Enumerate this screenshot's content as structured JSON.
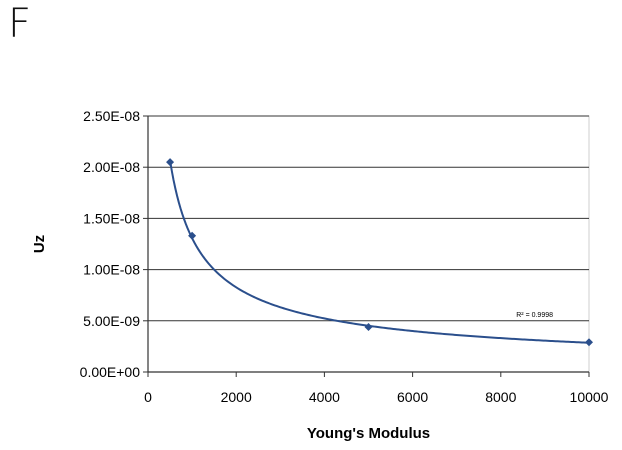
{
  "panel_label": "F",
  "chart_data": {
    "type": "scatter",
    "title": "",
    "xlabel": "Young's Modulus",
    "ylabel": "Uz",
    "xlim": [
      0,
      10000
    ],
    "ylim": [
      0,
      2.5e-08
    ],
    "x_ticks": [
      0,
      2000,
      4000,
      6000,
      8000,
      10000
    ],
    "x_tick_labels": [
      "0",
      "2000",
      "4000",
      "6000",
      "8000",
      "10000"
    ],
    "y_ticks": [
      0,
      5e-09,
      1e-08,
      1.5e-08,
      2e-08,
      2.5e-08
    ],
    "y_tick_labels": [
      "0.00E+00",
      "5.00E-09",
      "1.00E-08",
      "1.50E-08",
      "2.00E-08",
      "2.50E-08"
    ],
    "grid": "horizontal",
    "series": [
      {
        "x": [
          500,
          1000,
          5000,
          10000
        ],
        "y": [
          2.05e-08,
          1.33e-08,
          4.4e-09,
          2.9e-09
        ],
        "color": "#2b4f8c",
        "marker": "diamond"
      }
    ],
    "trendline": {
      "type": "power",
      "annotation": "R² = 0.9998",
      "color": "#2b4f8c"
    }
  }
}
